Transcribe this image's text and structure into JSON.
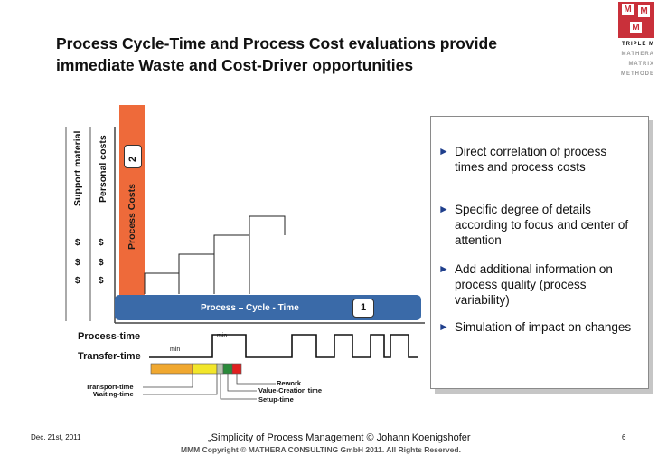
{
  "title": {
    "line1": "Process Cycle-Time and Process Cost evaluations provide",
    "line2": "immediate Waste and Cost-Driver opportunities"
  },
  "logo": {
    "mark": "M",
    "line1": "TRIPLE M",
    "line2": "MATHERA",
    "line3": "MATRIX",
    "line4": "METHODE"
  },
  "diagram": {
    "label_support_material": "Support material",
    "label_personal_costs": "Personal costs",
    "label_process_costs": "Process Costs",
    "badge_costs": "2",
    "dollar_sign": "$",
    "bar_label": "Process – Cycle - Time",
    "badge_cycle": "1",
    "process_time": "Process-time",
    "transfer_time": "Transfer-time",
    "min_1": "min",
    "min_2": "min",
    "transport_time": "Transport-time",
    "waiting_time": "Waiting-time",
    "rework": "Rework",
    "value_creation_time": "Value-Creation time",
    "setup_time": "Setup-time",
    "colors": {
      "orange_bar": "#ee6a3a",
      "blue_bar": "#3a6aa8",
      "segment_orange": "#f0a830",
      "segment_yellow": "#f2e62a",
      "segment_gray": "#b8c0b0",
      "segment_green": "#2a8a3a",
      "segment_red": "#e02020"
    }
  },
  "bullets": [
    "Direct correlation of process times and process costs",
    "Specific degree of details according to focus and center of attention",
    "Add additional information on process quality (process variability)",
    "Simulation of impact on changes"
  ],
  "footer": {
    "date": "Dec. 21st, 2011",
    "center": "„Simplicity of Process Management   © Johann Koenigshofer",
    "copyright": "MMM Copyright ©  MATHERA CONSULTING GmbH 2011. All Rights Reserved.",
    "page": "6"
  }
}
